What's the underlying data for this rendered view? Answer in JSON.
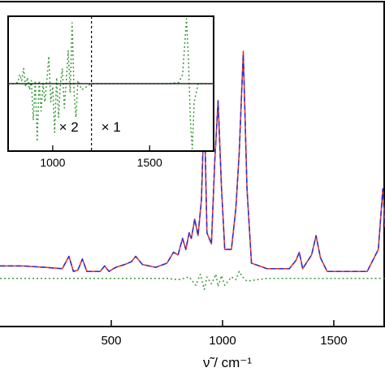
{
  "chart_data": [
    {
      "type": "line",
      "panel": "main",
      "title": "",
      "xlabel": "ν̃ / cm⁻¹",
      "ylabel": "",
      "xlim": [
        0,
        1730
      ],
      "ylim": [
        -0.18,
        1.0
      ],
      "x_ticks": [
        500,
        1000,
        1500
      ],
      "x_tick_labels": [
        "500",
        "1000",
        "1500"
      ],
      "grid": false,
      "legend": "none",
      "series": [
        {
          "color": "#e8382f",
          "style": "solid",
          "x": [
            0,
            100,
            200,
            280,
            310,
            330,
            350,
            370,
            390,
            450,
            470,
            490,
            520,
            560,
            590,
            610,
            640,
            700,
            750,
            780,
            800,
            820,
            835,
            850,
            860,
            875,
            890,
            905,
            918,
            930,
            950,
            965,
            980,
            995,
            1010,
            1040,
            1060,
            1075,
            1093,
            1110,
            1130,
            1200,
            1300,
            1330,
            1345,
            1360,
            1400,
            1420,
            1440,
            1470,
            1550,
            1650,
            1700,
            1720,
            1730
          ],
          "y": [
            0.04,
            0.04,
            0.035,
            0.03,
            0.075,
            0.02,
            0.025,
            0.065,
            0.02,
            0.02,
            0.04,
            0.02,
            0.035,
            0.045,
            0.055,
            0.075,
            0.045,
            0.035,
            0.05,
            0.09,
            0.08,
            0.14,
            0.1,
            0.16,
            0.14,
            0.21,
            0.15,
            0.28,
            0.61,
            0.16,
            0.12,
            0.42,
            0.64,
            0.33,
            0.1,
            0.1,
            0.25,
            0.45,
            0.82,
            0.32,
            0.05,
            0.03,
            0.03,
            0.06,
            0.09,
            0.03,
            0.08,
            0.15,
            0.07,
            0.02,
            0.02,
            0.02,
            0.1,
            0.32,
            0.18
          ]
        },
        {
          "color": "#2433d6",
          "style": "dashed",
          "x": [
            0,
            100,
            200,
            280,
            310,
            330,
            350,
            370,
            390,
            450,
            470,
            490,
            520,
            560,
            590,
            610,
            640,
            700,
            750,
            780,
            800,
            820,
            835,
            850,
            860,
            875,
            890,
            905,
            918,
            930,
            950,
            965,
            980,
            995,
            1010,
            1040,
            1060,
            1075,
            1093,
            1110,
            1130,
            1200,
            1300,
            1330,
            1345,
            1360,
            1400,
            1420,
            1440,
            1470,
            1550,
            1650,
            1700,
            1720,
            1730
          ],
          "y": [
            0.04,
            0.04,
            0.035,
            0.03,
            0.075,
            0.02,
            0.025,
            0.065,
            0.02,
            0.02,
            0.04,
            0.02,
            0.035,
            0.045,
            0.055,
            0.075,
            0.045,
            0.035,
            0.05,
            0.09,
            0.08,
            0.14,
            0.1,
            0.16,
            0.14,
            0.21,
            0.15,
            0.28,
            0.65,
            0.16,
            0.12,
            0.42,
            0.64,
            0.33,
            0.1,
            0.1,
            0.25,
            0.45,
            0.81,
            0.32,
            0.05,
            0.03,
            0.03,
            0.06,
            0.09,
            0.03,
            0.08,
            0.15,
            0.07,
            0.02,
            0.02,
            0.02,
            0.1,
            0.32,
            0.18
          ]
        },
        {
          "color": "#3a9a3a",
          "style": "dotted",
          "x": [
            0,
            200,
            400,
            600,
            750,
            800,
            850,
            880,
            900,
            918,
            930,
            950,
            970,
            980,
            995,
            1010,
            1040,
            1060,
            1075,
            1090,
            1110,
            1200,
            1400,
            1600,
            1730
          ],
          "y": [
            -0.005,
            -0.005,
            -0.005,
            -0.005,
            -0.005,
            -0.01,
            0.0,
            -0.03,
            0.01,
            -0.045,
            0.0,
            -0.025,
            0.01,
            -0.035,
            0.005,
            -0.03,
            0.0,
            -0.01,
            0.02,
            0.0,
            -0.015,
            -0.005,
            -0.005,
            -0.005,
            -0.005
          ]
        }
      ]
    },
    {
      "type": "line",
      "panel": "inset",
      "title": "",
      "xlabel": "",
      "ylabel": "",
      "xlim": [
        770,
        1830
      ],
      "ylim": [
        -1.0,
        1.0
      ],
      "x_ticks": [
        1000,
        1500
      ],
      "x_tick_labels": [
        "1000",
        "1500"
      ],
      "grid": false,
      "divider_at": 1200,
      "annotations": [
        "× 2",
        "× 1"
      ],
      "series": [
        {
          "color": "#3a9a3a",
          "style": "dotted",
          "x": [
            770,
            800,
            820,
            830,
            840,
            850,
            860,
            870,
            880,
            890,
            900,
            910,
            920,
            930,
            940,
            950,
            960,
            970,
            980,
            990,
            1000,
            1010,
            1020,
            1030,
            1040,
            1050,
            1060,
            1070,
            1080,
            1090,
            1100,
            1110,
            1120,
            1130,
            1150,
            1200,
            1300,
            1400,
            1500,
            1600,
            1650,
            1670,
            1680,
            1690,
            1700,
            1710,
            1720,
            1730,
            1750,
            1800,
            1830
          ],
          "y": [
            0,
            0,
            0.02,
            0.15,
            0.05,
            0.25,
            -0.05,
            0.1,
            -0.1,
            0.05,
            -0.6,
            0.05,
            -0.95,
            0.05,
            -0.45,
            0.0,
            -0.3,
            0.05,
            0.45,
            -0.3,
            -0.05,
            -0.8,
            0.1,
            -0.55,
            0.0,
            0.25,
            -0.4,
            0.05,
            0.55,
            -0.15,
            1.0,
            -0.15,
            -0.55,
            0.05,
            -0.1,
            0,
            0,
            0,
            0,
            0,
            0.02,
            0.15,
            0.6,
            1.5,
            0.4,
            -0.6,
            -1.1,
            -0.3,
            0.0,
            0,
            0
          ]
        }
      ]
    }
  ]
}
